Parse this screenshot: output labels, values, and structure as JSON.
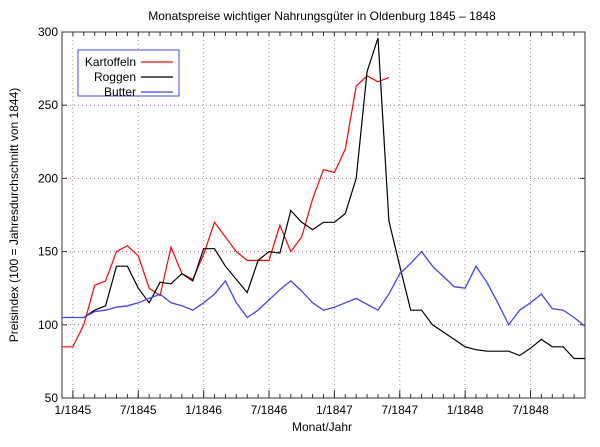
{
  "chart_data": {
    "type": "line",
    "title": "Monatspreise wichtiger Nahrungsgüter in Oldenburg 1845 – 1848",
    "xlabel": "Monat/Jahr",
    "ylabel": "Preisindex (100 = Jahresdurchschnitt von 1844)",
    "ylim": [
      50,
      300
    ],
    "yticks": [
      50,
      100,
      150,
      200,
      250,
      300
    ],
    "xlim_months": [
      -1,
      47
    ],
    "xticks": [
      {
        "m": 0,
        "label": "1/1845"
      },
      {
        "m": 6,
        "label": "7/1845"
      },
      {
        "m": 12,
        "label": "1/1846"
      },
      {
        "m": 18,
        "label": "7/1846"
      },
      {
        "m": 24,
        "label": "1/1847"
      },
      {
        "m": 30,
        "label": "7/1847"
      },
      {
        "m": 36,
        "label": "1/1848"
      },
      {
        "m": 42,
        "label": "7/1848"
      }
    ],
    "x_note": "month index, 0 = 1/1845",
    "grid": true,
    "legend_position": "top-left",
    "series": [
      {
        "name": "Kartoffeln",
        "color": "#ff0000",
        "start": -1,
        "values": [
          85,
          85,
          100,
          127,
          130,
          150,
          154,
          147,
          125,
          120,
          153,
          135,
          131,
          148,
          170,
          160,
          150,
          144,
          144,
          144,
          168,
          150,
          160,
          186,
          206,
          204,
          220,
          263,
          270,
          266,
          269
        ]
      },
      {
        "name": "Roggen",
        "color": "#000000",
        "start": 1,
        "values": [
          105,
          110,
          113,
          140,
          140,
          125,
          115,
          129,
          128,
          135,
          130,
          152,
          152,
          140,
          131,
          122,
          144,
          150,
          149,
          178,
          170,
          165,
          170,
          170,
          176,
          200,
          273,
          296,
          171,
          140,
          110,
          110,
          100,
          95,
          90,
          85,
          83,
          82,
          82,
          82,
          79,
          84,
          90,
          85,
          85,
          77,
          77
        ]
      },
      {
        "name": "Butter",
        "color": "#4444ee",
        "start": -1,
        "values": [
          105,
          105,
          105,
          109,
          110,
          112,
          113,
          115,
          118,
          121,
          115,
          113,
          110,
          115,
          121,
          130,
          115,
          105,
          110,
          117,
          124,
          130,
          123,
          115,
          110,
          112,
          115,
          118,
          114,
          110,
          121,
          135,
          142,
          150,
          140,
          133,
          126,
          125,
          140,
          129,
          115,
          100,
          110,
          115,
          121,
          111,
          110,
          105,
          99
        ]
      }
    ]
  }
}
